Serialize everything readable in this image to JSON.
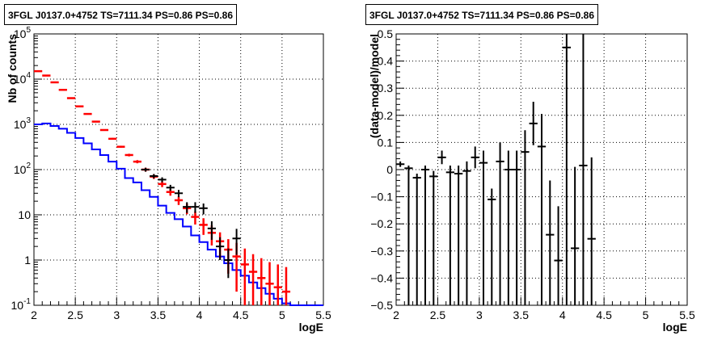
{
  "panels": [
    {
      "title": "3FGL J0137.0+4752 TS=7111.34 PS=0.86 PS=0.86"
    },
    {
      "title": "3FGL J0137.0+4752 TS=7111.34 PS=0.86 PS=0.86"
    }
  ],
  "chart_data": [
    {
      "type": "line",
      "title": "3FGL J0137.0+4752 TS=7111.34 PS=0.86 PS=0.86",
      "xlabel": "logE",
      "ylabel": "Nb of counts",
      "xlim": [
        2,
        5.5
      ],
      "ylim": [
        0.1,
        100000
      ],
      "yscale": "log",
      "grid": true,
      "xticks": [
        "2",
        "2.5",
        "3",
        "3.5",
        "4",
        "4.5",
        "5",
        "5.5"
      ],
      "yticks": [
        "10^-1",
        "1",
        "10",
        "10^2",
        "10^3",
        "10^4",
        "10^5"
      ],
      "ytick_values": [
        0.1,
        1,
        10,
        100,
        1000,
        10000,
        100000
      ],
      "bin_edges": [
        2.0,
        2.1,
        2.2,
        2.3,
        2.4,
        2.5,
        2.6,
        2.7,
        2.8,
        2.9,
        3.0,
        3.1,
        3.2,
        3.3,
        3.4,
        3.5,
        3.6,
        3.7,
        3.8,
        3.9,
        4.0,
        4.1,
        4.2,
        4.3,
        4.4,
        4.5,
        4.6,
        4.7,
        4.8,
        4.9,
        5.0,
        5.1,
        5.2,
        5.3,
        5.4,
        5.5
      ],
      "series": [
        {
          "color": "#0000ff",
          "style": "step",
          "values": [
            1000,
            1050,
            920,
            800,
            650,
            500,
            380,
            280,
            210,
            150,
            105,
            65,
            52,
            35,
            25,
            16,
            11,
            8,
            5.5,
            3.5,
            2.5,
            1.7,
            1.2,
            0.85,
            0.6,
            0.45,
            0.32,
            0.24,
            0.18,
            0.14,
            0.11,
            0.1,
            0.1,
            0.1,
            0.1
          ]
        },
        {
          "color": "#ff0000",
          "style": "errorbar",
          "x": [
            2.05,
            2.15,
            2.25,
            2.35,
            2.45,
            2.55,
            2.65,
            2.75,
            2.85,
            2.95,
            3.05,
            3.15,
            3.25,
            3.35,
            3.45,
            3.55,
            3.65,
            3.75,
            3.85,
            3.95,
            4.05,
            4.15,
            4.25,
            4.35,
            4.45,
            4.55,
            4.65,
            4.75,
            4.85,
            4.95,
            5.05
          ],
          "y": [
            15000,
            12000,
            8500,
            5800,
            3800,
            2500,
            1700,
            1150,
            750,
            480,
            320,
            210,
            150,
            100,
            70,
            48,
            32,
            21,
            14,
            9,
            6,
            4,
            2.6,
            1.7,
            1.2,
            0.8,
            0.55,
            0.4,
            0.3,
            0.25,
            0.2
          ],
          "yerr_low": [
            120,
            110,
            90,
            75,
            60,
            50,
            40,
            33,
            27,
            22,
            17,
            14,
            12,
            10,
            8,
            7,
            5.5,
            4.5,
            3.7,
            2.9,
            2.4,
            1.9,
            1.5,
            1.2,
            1.0,
            0.7,
            0.5,
            0.38,
            0.29,
            0.24,
            0.19
          ],
          "yerr_high": [
            120,
            110,
            90,
            75,
            60,
            50,
            40,
            33,
            27,
            22,
            17,
            14,
            12,
            10,
            8,
            7,
            5.5,
            4.5,
            3.7,
            2.9,
            2.4,
            1.9,
            1.5,
            1.2,
            1.2,
            1.0,
            0.8,
            0.7,
            0.6,
            0.55,
            0.5
          ]
        },
        {
          "color": "#000000",
          "style": "errorbar",
          "x": [
            3.35,
            3.45,
            3.55,
            3.65,
            3.75,
            3.85,
            3.95,
            4.05,
            4.15,
            4.25,
            4.35,
            4.45
          ],
          "y": [
            100,
            72,
            60,
            40,
            30,
            15,
            15,
            14,
            5,
            2,
            1,
            3
          ],
          "yerr_low": [
            10,
            8,
            7.5,
            6,
            5.5,
            4,
            4,
            3.8,
            2.2,
            1,
            0.6,
            1.7
          ],
          "yerr_high": [
            10,
            8,
            7.5,
            6,
            5.5,
            4,
            4,
            3.8,
            2.2,
            1.2,
            0.8,
            1.9
          ]
        }
      ]
    },
    {
      "type": "scatter",
      "title": "3FGL J0137.0+4752 TS=7111.34 PS=0.86 PS=0.86",
      "xlabel": "logE",
      "ylabel": "(data-model)/model",
      "xlim": [
        2,
        5.5
      ],
      "ylim": [
        -0.5,
        0.5
      ],
      "grid": true,
      "xticks": [
        "2",
        "2.5",
        "3",
        "3.5",
        "4",
        "4.5",
        "5",
        "5.5"
      ],
      "yticks": [
        "-0.5",
        "-0.4",
        "-0.3",
        "-0.2",
        "-0.1",
        "0",
        "0.1",
        "0.2",
        "0.3",
        "0.4",
        "0.5"
      ],
      "series": [
        {
          "color": "#000000",
          "style": "errorbar",
          "x": [
            2.05,
            2.15,
            2.25,
            2.35,
            2.45,
            2.55,
            2.65,
            2.75,
            2.85,
            2.95,
            3.05,
            3.15,
            3.25,
            3.35,
            3.45,
            3.55,
            3.65,
            3.75,
            3.85,
            3.95,
            4.05,
            4.15,
            4.25,
            4.35
          ],
          "y": [
            0.02,
            0.005,
            -0.03,
            0.0,
            -0.025,
            0.045,
            -0.01,
            -0.015,
            -0.005,
            0.045,
            0.025,
            -0.11,
            0.03,
            0.0,
            0.0,
            0.065,
            0.17,
            0.085,
            -0.24,
            -0.335,
            0.45,
            -0.29,
            0.015,
            -0.255
          ],
          "yerr_low": [
            0.01,
            0.01,
            0.015,
            0.015,
            0.02,
            0.025,
            0.025,
            0.03,
            0.035,
            0.04,
            0.045,
            0.04,
            0.07,
            0.07,
            0.07,
            0.08,
            0.08,
            0.12,
            0.2,
            0.2,
            0.55,
            0.3,
            0.6,
            0.3
          ],
          "yerr_high": [
            0.01,
            0.01,
            0.015,
            0.015,
            0.02,
            0.025,
            0.025,
            0.03,
            0.035,
            0.04,
            0.045,
            0.04,
            0.07,
            0.07,
            0.07,
            0.08,
            0.08,
            0.12,
            0.2,
            0.2,
            0.55,
            0.3,
            0.6,
            0.3
          ]
        }
      ]
    }
  ]
}
